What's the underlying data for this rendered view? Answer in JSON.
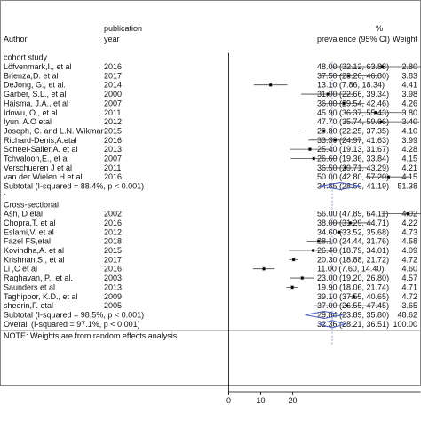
{
  "chart_data": {
    "type": "forest",
    "header": {
      "author": "Author",
      "pubyear": [
        "publication",
        "year"
      ],
      "estimate": [
        "%",
        "prevalence (95% CI)"
      ],
      "weight": "Weight"
    },
    "axis": {
      "min": 0,
      "max": 60,
      "ticks": [
        0,
        10,
        20
      ],
      "tick_labels": [
        "0",
        "10",
        "20"
      ],
      "null_line": 0,
      "reference_value": 32.36
    },
    "groups": [
      {
        "name": "cohort study",
        "studies": [
          {
            "author": "Löfvenmark,I., et al",
            "year": "2016",
            "est": 48.0,
            "lo": 32.12,
            "hi": 63.88,
            "text": "48.00 (32.12, 63.88)",
            "weight": "2.80"
          },
          {
            "author": "Brienza,D. et al",
            "year": "2017",
            "est": 37.5,
            "lo": 28.2,
            "hi": 46.8,
            "text": "37.50 (28.20, 46.80)",
            "weight": "3.83"
          },
          {
            "author": "DeJong, G., et al.",
            "year": "2014",
            "est": 13.1,
            "lo": 7.86,
            "hi": 18.34,
            "text": "13.10 (7.86, 18.34)",
            "weight": "4.41"
          },
          {
            "author": "Garber, S.L., et al",
            "year": "2000",
            "est": 31.0,
            "lo": 22.66,
            "hi": 39.34,
            "text": "31.00 (22.66, 39.34)",
            "weight": "3.98"
          },
          {
            "author": "Haisma, J.A., et al",
            "year": "2007",
            "est": 36.0,
            "lo": 29.54,
            "hi": 42.46,
            "text": "36.00 (29.54, 42.46)",
            "weight": "4.26"
          },
          {
            "author": "Idowu, O., et al",
            "year": "2011",
            "est": 45.9,
            "lo": 36.37,
            "hi": 55.43,
            "text": "45.90 (36.37, 55.43)",
            "weight": "3.80"
          },
          {
            "author": "Iyun, A.O etal",
            "year": "2012",
            "est": 47.7,
            "lo": 35.74,
            "hi": 59.66,
            "text": "47.70 (35.74, 59.66)",
            "weight": "3.40"
          },
          {
            "author": "Joseph, C. and L.N. Wikmar",
            "year": "2015",
            "est": 29.8,
            "lo": 22.25,
            "hi": 37.35,
            "text": "29.80 (22.25, 37.35)",
            "weight": "4.10"
          },
          {
            "author": "Richard-Denis,A.etal",
            "year": "2016",
            "est": 33.3,
            "lo": 24.97,
            "hi": 41.63,
            "text": "33.30 (24.97, 41.63)",
            "weight": "3.99"
          },
          {
            "author": "Scheel-Sailer,A. et al",
            "year": "2013",
            "est": 25.4,
            "lo": 19.13,
            "hi": 31.67,
            "text": "25.40 (19.13, 31.67)",
            "weight": "4.28"
          },
          {
            "author": "Tchvaloon,E., et al",
            "year": "2007",
            "est": 26.6,
            "lo": 19.36,
            "hi": 33.84,
            "text": "26.60 (19.36, 33.84)",
            "weight": "4.15"
          },
          {
            "author": "Verschueren J et al",
            "year": "2011",
            "est": 36.5,
            "lo": 29.71,
            "hi": 43.29,
            "text": "36.50 (29.71, 43.29)",
            "weight": "4.21"
          },
          {
            "author": "van der Wielen H et al",
            "year": "2016",
            "est": 50.0,
            "lo": 42.8,
            "hi": 57.2,
            "text": "50.00 (42.80, 57.20)",
            "weight": "4.15"
          }
        ],
        "subtotal": {
          "label": "Subtotal  (I-squared = 88.4%, p < 0.001)",
          "est": 34.85,
          "lo": 28.5,
          "hi": 41.19,
          "text": "34.85 (28.50, 41.19)",
          "weight": "51.38"
        }
      },
      {
        "name": "Cross-sectional",
        "studies": [
          {
            "author": "Ash, D etal",
            "year": "2002",
            "est": 56.0,
            "lo": 47.89,
            "hi": 64.11,
            "text": "56.00 (47.89, 64.11)",
            "weight": "4.02"
          },
          {
            "author": "Chopra,T. et al",
            "year": "2016",
            "est": 38.0,
            "lo": 31.29,
            "hi": 44.71,
            "text": "38.00 (31.29, 44.71)",
            "weight": "4.22"
          },
          {
            "author": "Eslami,V. et al",
            "year": "2012",
            "est": 34.6,
            "lo": 33.52,
            "hi": 35.68,
            "text": "34.60 (33.52, 35.68)",
            "weight": "4.73"
          },
          {
            "author": "Fazel FS,etal",
            "year": "2018",
            "est": 28.1,
            "lo": 24.44,
            "hi": 31.76,
            "text": "28.10 (24.44, 31.76)",
            "weight": "4.58"
          },
          {
            "author": "Kovindha,A. et al",
            "year": "2015",
            "est": 26.4,
            "lo": 18.79,
            "hi": 34.01,
            "text": "26.40 (18.79, 34.01)",
            "weight": "4.09"
          },
          {
            "author": "Krishnan,S., et al",
            "year": "2017",
            "est": 20.3,
            "lo": 18.88,
            "hi": 21.72,
            "text": "20.30 (18.88, 21.72)",
            "weight": "4.72"
          },
          {
            "author": "Li ,C et al",
            "year": "2016",
            "est": 11.0,
            "lo": 7.6,
            "hi": 14.4,
            "text": "11.00 (7.60, 14.40)",
            "weight": "4.60"
          },
          {
            "author": "Raghavan, P., et al.",
            "year": "2003",
            "est": 23.0,
            "lo": 19.2,
            "hi": 26.8,
            "text": "23.00 (19.20, 26.80)",
            "weight": "4.57"
          },
          {
            "author": "Saunders et al",
            "year": "2013",
            "est": 19.9,
            "lo": 18.06,
            "hi": 21.74,
            "text": "19.90 (18.06, 21.74)",
            "weight": "4.71"
          },
          {
            "author": "Taghipoor, K.D., et al",
            "year": "2009",
            "est": 39.1,
            "lo": 37.55,
            "hi": 40.65,
            "text": "39.10 (37.55, 40.65)",
            "weight": "4.72"
          },
          {
            "author": "sheerin,F. etal",
            "year": "2005",
            "est": 37.0,
            "lo": 26.55,
            "hi": 47.45,
            "text": "37.00 (26.55, 47.45)",
            "weight": "3.65"
          }
        ],
        "subtotal": {
          "label": "Subtotal  (I-squared = 98.5%, p < 0.001)",
          "est": 29.84,
          "lo": 23.89,
          "hi": 35.8,
          "text": "29.84 (23.89, 35.80)",
          "weight": "48.62"
        }
      }
    ],
    "overall": {
      "label": "Overall  (I-squared = 97.1%, p < 0.001)",
      "est": 32.36,
      "lo": 28.21,
      "hi": 36.51,
      "text": "32.36 (28.21, 36.51)",
      "weight": "100.00"
    },
    "note": "NOTE: Weights are from random effects analysis",
    "colors": {
      "marker": "#000000",
      "diamond": "#4a5fc1",
      "reference_line": "#4a5fc1",
      "text": "#111111",
      "box": "#888888"
    }
  }
}
